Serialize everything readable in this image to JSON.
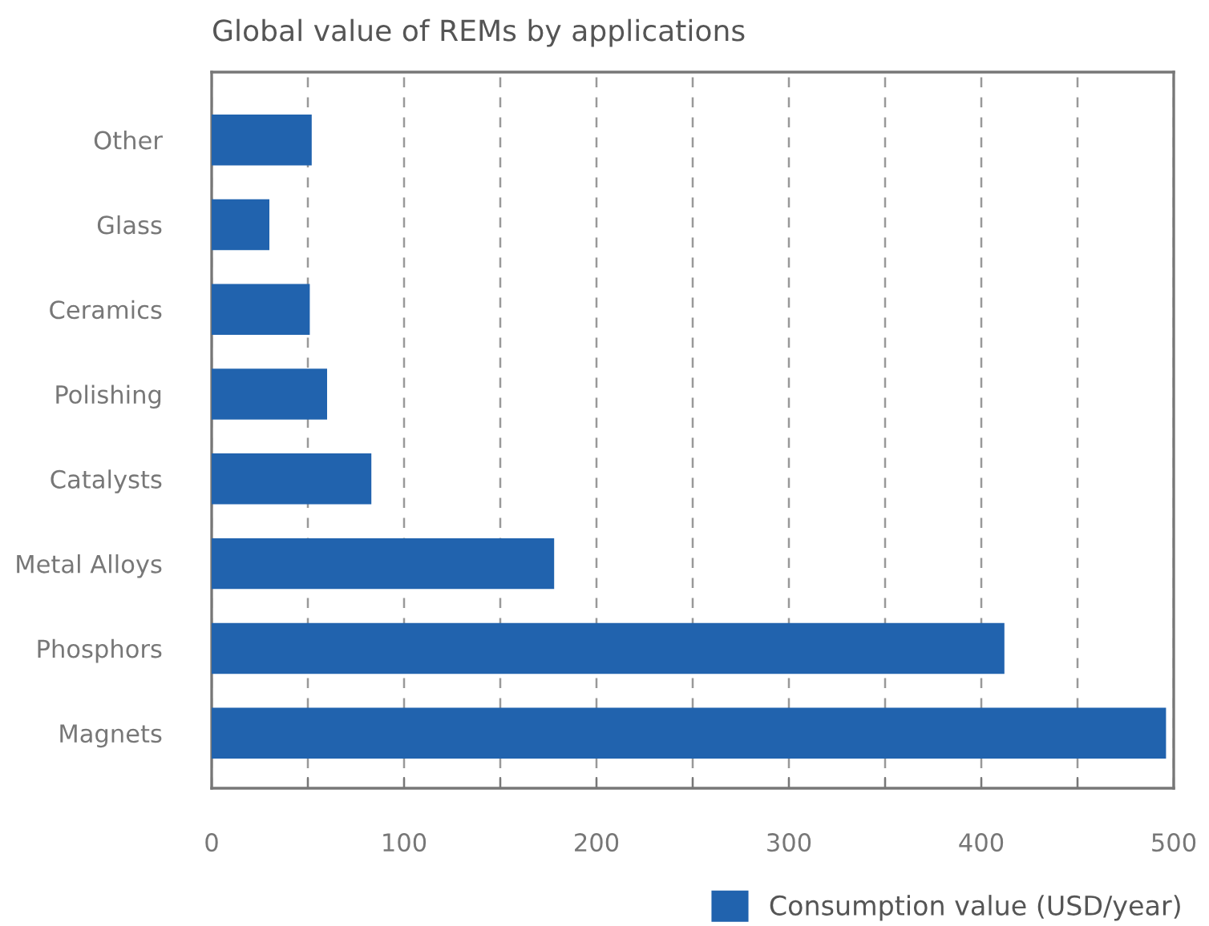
{
  "chart_data": {
    "type": "bar",
    "orientation": "horizontal",
    "title": "Global value of REMs by applications",
    "categories": [
      "Other",
      "Glass",
      "Ceramics",
      "Polishing",
      "Catalysts",
      "Metal Alloys",
      "Phosphors",
      "Magnets"
    ],
    "series": [
      {
        "name": "Consumption value (USD/year)",
        "color": "#2163ae",
        "values": [
          52,
          30,
          51,
          60,
          83,
          178,
          412,
          496
        ]
      }
    ],
    "xlim": [
      0,
      500
    ],
    "xticks": [
      0,
      {
        "value": 50,
        "label": null
      },
      100,
      {
        "value": 150,
        "label": null
      },
      200,
      {
        "value": 250,
        "label": null
      },
      300,
      {
        "value": 350,
        "label": null
      },
      400,
      {
        "value": 450,
        "label": null
      },
      500
    ],
    "grid": "x",
    "legend": "bottom right"
  }
}
